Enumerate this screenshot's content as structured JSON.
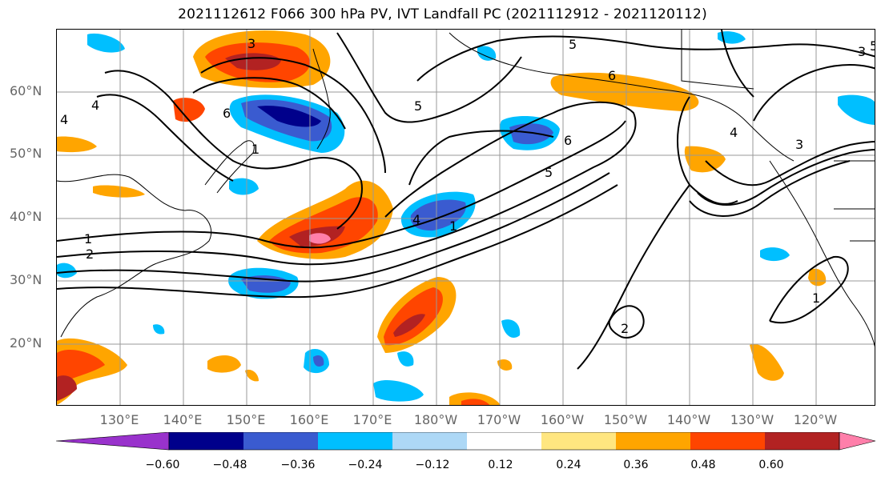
{
  "title": "2021112612 F066 300 hPa PV, IVT Landfall PC (2021112912 - 2021120112)",
  "lat_labels": [
    "60°N",
    "50°N",
    "40°N",
    "30°N",
    "20°N"
  ],
  "lon_labels": [
    "130°E",
    "140°E",
    "150°E",
    "160°E",
    "170°E",
    "180°W",
    "170°W",
    "160°W",
    "150°W",
    "140°W",
    "130°W",
    "120°W"
  ],
  "contour_labels": [
    "3",
    "6",
    "4",
    "1",
    "5",
    "5",
    "6",
    "5",
    "6",
    "3",
    "1",
    "2",
    "2",
    "1",
    "1",
    "4",
    "4",
    "4",
    "3",
    "5"
  ],
  "colorbar": {
    "tick_labels": [
      "−0.60",
      "−0.48",
      "−0.36",
      "−0.24",
      "−0.12",
      "0.12",
      "0.24",
      "0.36",
      "0.48",
      "0.60"
    ],
    "colors": [
      "#9932CC",
      "#00008B",
      "#3A5BD0",
      "#00BFFF",
      "#ADD8F6",
      "#FFFFFF",
      "#FFE680",
      "#FFA500",
      "#FF4500",
      "#B22222",
      "#FF7FAA"
    ]
  },
  "colors": {
    "grid": "#999999",
    "coast": "#000000",
    "contour": "#000000",
    "label": "#666666"
  }
}
